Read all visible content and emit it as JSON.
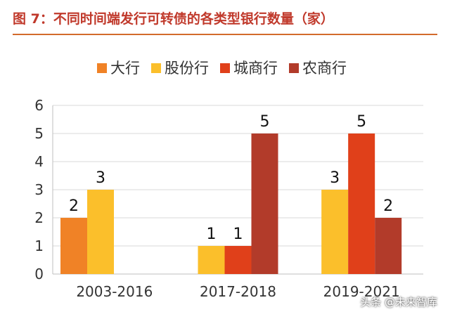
{
  "header": {
    "title": "图 7：不同时间端发行可转债的各类型银行数量（家）"
  },
  "watermark": "头条 @未来智库",
  "colors": {
    "title": "#c0392b",
    "rule": "#d36b2c",
    "axis": "#bfbfbf",
    "grid": "#d9d9d9"
  },
  "chart_data": {
    "type": "bar",
    "title": "",
    "xlabel": "",
    "ylabel": "",
    "categories": [
      "2003-2016",
      "2017-2018",
      "2019-2021"
    ],
    "ylim": [
      0,
      6
    ],
    "yticks": [
      0,
      1,
      2,
      3,
      4,
      5,
      6
    ],
    "grid": true,
    "legend_position": "top",
    "series": [
      {
        "name": "大行",
        "color": "#f08226",
        "values": [
          2,
          null,
          null
        ]
      },
      {
        "name": "股份行",
        "color": "#fbbf2b",
        "values": [
          3,
          1,
          3
        ]
      },
      {
        "name": "城商行",
        "color": "#e0401a",
        "values": [
          null,
          1,
          5
        ]
      },
      {
        "name": "农商行",
        "color": "#b23b2a",
        "values": [
          null,
          5,
          2
        ]
      }
    ]
  }
}
